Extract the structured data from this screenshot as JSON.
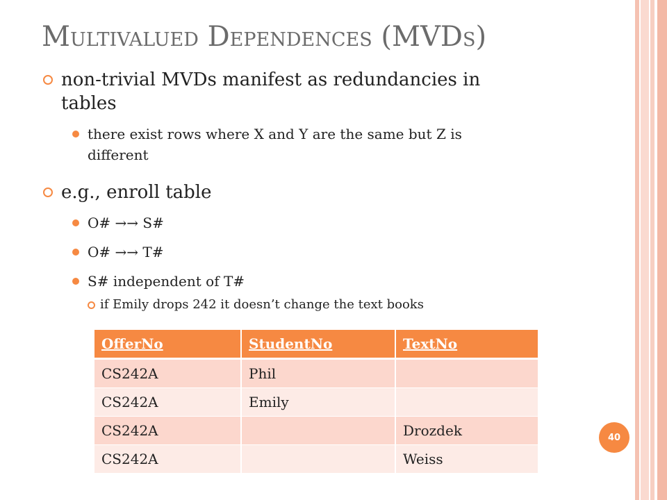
{
  "slide": {
    "title": {
      "parts": [
        {
          "text": "M",
          "small_caps": false
        },
        {
          "text": "ultivalued",
          "small_caps": true
        },
        {
          "text": " D",
          "small_caps": false
        },
        {
          "text": "ependences",
          "small_caps": true
        },
        {
          "text": " (MVD",
          "small_caps": false
        },
        {
          "text": "s",
          "small_caps": true
        },
        {
          "text": ")",
          "small_caps": false
        }
      ]
    },
    "bullets": [
      {
        "text": "non-trivial MVDs manifest as redundancies in tables",
        "sub": [
          {
            "text": "there exist rows where X and Y are the same but Z is different",
            "sub": []
          }
        ]
      },
      {
        "text": "e.g., enroll table",
        "sub": [
          {
            "text": "O# →→ S#",
            "sub": []
          },
          {
            "text": "O# →→ T#",
            "sub": []
          },
          {
            "text": "S# independent of T#",
            "sub": [
              {
                "text": "if Emily drops 242 it doesn’t change the text books"
              }
            ]
          }
        ]
      }
    ],
    "table": {
      "headers": [
        "OfferNo",
        "StudentNo",
        "TextNo"
      ],
      "rows": [
        [
          "CS242A",
          "Phil",
          ""
        ],
        [
          "CS242A",
          "Emily",
          ""
        ],
        [
          "CS242A",
          "",
          "Drozdek"
        ],
        [
          "CS242A",
          "",
          "Weiss"
        ]
      ]
    },
    "page_number": "40",
    "colors": {
      "accent": "#f68942",
      "title": "#6b6b6b",
      "row_dark": "#fcd7cd",
      "row_light": "#fdebe6",
      "stripes": [
        "#f5c2b2",
        "#fadad0",
        "#f7cfc2",
        "#ffffff",
        "#f3b9a6"
      ]
    }
  }
}
